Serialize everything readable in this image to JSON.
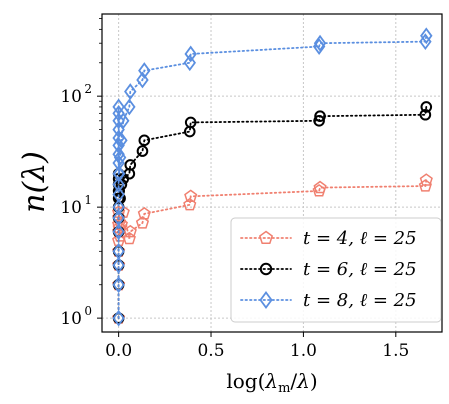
{
  "chart_data": {
    "type": "scatter",
    "xlabel": "log(λm/λ)",
    "ylabel": "n(λ)",
    "xlim": [
      -0.09,
      1.75
    ],
    "ylim": [
      0.75,
      550
    ],
    "yscale": "log",
    "grid": true,
    "legend_position": "bottom-right",
    "x_ticks": [
      0.0,
      0.5,
      1.0,
      1.5
    ],
    "x_tick_labels": [
      "0.0",
      "0.5",
      "1.0",
      "1.5"
    ],
    "y_ticks": [
      1,
      10,
      100
    ],
    "y_tick_labels": [
      "10^0",
      "10^1",
      "10^2"
    ],
    "series": [
      {
        "name": "t = 4, ℓ = 25",
        "color": "#f08070",
        "marker": "pentagon",
        "x": [
          0.0,
          0.0,
          0.0,
          0.0,
          0.0,
          0.0,
          0.0,
          0.0,
          0.0,
          0.003,
          0.008,
          0.015,
          0.025,
          0.058,
          0.063,
          0.129,
          0.139,
          0.385,
          0.39,
          1.085,
          1.09,
          1.66,
          1.665
        ],
        "y": [
          1,
          2,
          3,
          4,
          5,
          6,
          7,
          8,
          9,
          6.5,
          5.5,
          7,
          9,
          5.2,
          6,
          7.2,
          8.7,
          10.5,
          12.5,
          14,
          15,
          15.5,
          17.5
        ]
      },
      {
        "name": "t = 6, ℓ = 25",
        "color": "#000000",
        "marker": "circle",
        "x": [
          0.0,
          0.0,
          0.0,
          0.0,
          0.0,
          0.0,
          0.0,
          0.0,
          0.0,
          0.0,
          0.0,
          0.0,
          0.003,
          0.008,
          0.015,
          0.025,
          0.058,
          0.063,
          0.129,
          0.139,
          0.385,
          0.39,
          1.085,
          1.09,
          1.66,
          1.665
        ],
        "y": [
          1,
          2,
          3,
          4,
          6,
          8,
          10,
          12,
          14,
          16,
          18,
          20,
          14,
          12,
          16,
          18,
          20,
          24,
          32,
          40,
          48,
          58,
          60,
          66,
          68,
          80
        ]
      },
      {
        "name": "t = 8, ℓ = 25",
        "color": "#5b8fe0",
        "marker": "diamond",
        "x": [
          0.0,
          0.0,
          0.0,
          0.0,
          0.0,
          0.0,
          0.0,
          0.0,
          0.0,
          0.0,
          0.0,
          0.0,
          0.0,
          0.0,
          0.0,
          0.0,
          0.0,
          0.0,
          0.003,
          0.008,
          0.015,
          0.025,
          0.058,
          0.063,
          0.129,
          0.139,
          0.385,
          0.39,
          1.085,
          1.09,
          1.66,
          1.665
        ],
        "y": [
          1,
          2,
          3,
          4,
          6,
          8,
          10,
          13,
          16,
          20,
          25,
          30,
          36,
          42,
          50,
          60,
          70,
          80,
          20,
          28,
          40,
          60,
          80,
          110,
          140,
          170,
          200,
          240,
          280,
          300,
          310,
          350
        ]
      }
    ]
  }
}
